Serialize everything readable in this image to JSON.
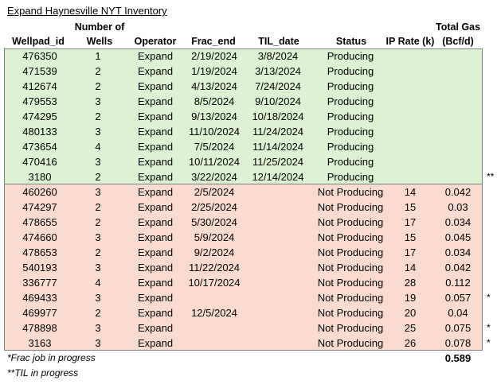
{
  "title": "Expand Haynesville NYT Inventory",
  "headers": {
    "wellpad_id": "Wellpad_id",
    "wells_line1": "Number of",
    "wells_line2": "Wells",
    "operator": "Operator",
    "frac_end": "Frac_end",
    "til_date": "TIL_date",
    "status": "Status",
    "ip_rate": "IP Rate (k)",
    "total_gas_line1": "Total Gas",
    "total_gas_line2": "(Bcf/d)"
  },
  "producing_rows": [
    {
      "id": "476350",
      "wells": "1",
      "operator": "Expand",
      "frac_end": "2/19/2024",
      "til_date": "3/8/2024",
      "status": "Producing",
      "ip": "",
      "gas": "",
      "mark": ""
    },
    {
      "id": "471539",
      "wells": "2",
      "operator": "Expand",
      "frac_end": "1/19/2024",
      "til_date": "3/13/2024",
      "status": "Producing",
      "ip": "",
      "gas": "",
      "mark": ""
    },
    {
      "id": "412674",
      "wells": "2",
      "operator": "Expand",
      "frac_end": "4/13/2024",
      "til_date": "7/24/2024",
      "status": "Producing",
      "ip": "",
      "gas": "",
      "mark": ""
    },
    {
      "id": "479553",
      "wells": "3",
      "operator": "Expand",
      "frac_end": "8/5/2024",
      "til_date": "9/10/2024",
      "status": "Producing",
      "ip": "",
      "gas": "",
      "mark": ""
    },
    {
      "id": "474295",
      "wells": "2",
      "operator": "Expand",
      "frac_end": "9/13/2024",
      "til_date": "10/18/2024",
      "status": "Producing",
      "ip": "",
      "gas": "",
      "mark": ""
    },
    {
      "id": "480133",
      "wells": "3",
      "operator": "Expand",
      "frac_end": "11/10/2024",
      "til_date": "11/24/2024",
      "status": "Producing",
      "ip": "",
      "gas": "",
      "mark": ""
    },
    {
      "id": "473654",
      "wells": "4",
      "operator": "Expand",
      "frac_end": "7/5/2024",
      "til_date": "11/14/2024",
      "status": "Producing",
      "ip": "",
      "gas": "",
      "mark": ""
    },
    {
      "id": "470416",
      "wells": "3",
      "operator": "Expand",
      "frac_end": "10/11/2024",
      "til_date": "11/25/2024",
      "status": "Producing",
      "ip": "",
      "gas": "",
      "mark": ""
    },
    {
      "id": "3180",
      "wells": "2",
      "operator": "Expand",
      "frac_end": "3/22/2024",
      "til_date": "12/14/2024",
      "status": "Producing",
      "ip": "",
      "gas": "",
      "mark": "**"
    }
  ],
  "non_producing_rows": [
    {
      "id": "460260",
      "wells": "3",
      "operator": "Expand",
      "frac_end": "2/5/2024",
      "til_date": "",
      "status": "Not Producing",
      "ip": "14",
      "gas": "0.042",
      "mark": ""
    },
    {
      "id": "474297",
      "wells": "2",
      "operator": "Expand",
      "frac_end": "2/25/2024",
      "til_date": "",
      "status": "Not Producing",
      "ip": "15",
      "gas": "0.03",
      "mark": ""
    },
    {
      "id": "478655",
      "wells": "2",
      "operator": "Expand",
      "frac_end": "5/30/2024",
      "til_date": "",
      "status": "Not Producing",
      "ip": "17",
      "gas": "0.034",
      "mark": ""
    },
    {
      "id": "474660",
      "wells": "3",
      "operator": "Expand",
      "frac_end": "5/9/2024",
      "til_date": "",
      "status": "Not Producing",
      "ip": "15",
      "gas": "0.045",
      "mark": ""
    },
    {
      "id": "478653",
      "wells": "2",
      "operator": "Expand",
      "frac_end": "9/2/2024",
      "til_date": "",
      "status": "Not Producing",
      "ip": "17",
      "gas": "0.034",
      "mark": ""
    },
    {
      "id": "540193",
      "wells": "3",
      "operator": "Expand",
      "frac_end": "11/22/2024",
      "til_date": "",
      "status": "Not Producing",
      "ip": "14",
      "gas": "0.042",
      "mark": ""
    },
    {
      "id": "336777",
      "wells": "4",
      "operator": "Expand",
      "frac_end": "10/17/2024",
      "til_date": "",
      "status": "Not Producing",
      "ip": "28",
      "gas": "0.112",
      "mark": ""
    },
    {
      "id": "469433",
      "wells": "3",
      "operator": "Expand",
      "frac_end": "",
      "til_date": "",
      "status": "Not Producing",
      "ip": "19",
      "gas": "0.057",
      "mark": "*"
    },
    {
      "id": "469977",
      "wells": "2",
      "operator": "Expand",
      "frac_end": "12/5/2024",
      "til_date": "",
      "status": "Not Producing",
      "ip": "20",
      "gas": "0.04",
      "mark": ""
    },
    {
      "id": "478898",
      "wells": "3",
      "operator": "Expand",
      "frac_end": "",
      "til_date": "",
      "status": "Not Producing",
      "ip": "25",
      "gas": "0.075",
      "mark": "*"
    },
    {
      "id": "3163",
      "wells": "3",
      "operator": "Expand",
      "frac_end": "",
      "til_date": "",
      "status": "Not Producing",
      "ip": "26",
      "gas": "0.078",
      "mark": "*"
    }
  ],
  "footer": {
    "note_frac": "*Frac job in progress",
    "note_til": "**TIL in progress",
    "total_gas": "0.589"
  },
  "colors": {
    "producing_bg": "#dcf2d2",
    "non_producing_bg": "#fadbd0"
  }
}
